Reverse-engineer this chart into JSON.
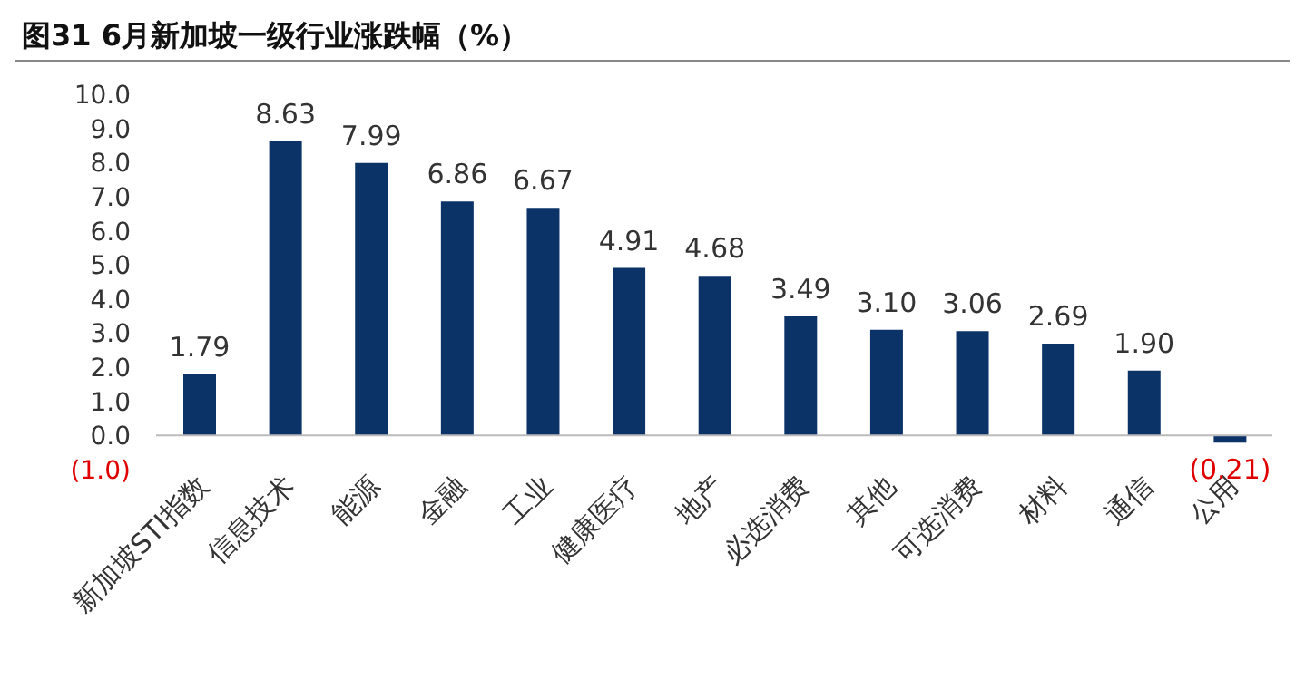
{
  "chart_data": {
    "type": "bar",
    "title": "图31 6月新加坡一级行业涨跌幅（%）",
    "categories": [
      "新加坡STI指数",
      "信息技术",
      "能源",
      "金融",
      "工业",
      "健康医疗",
      "地产",
      "必选消费",
      "其他",
      "可选消费",
      "材料",
      "通信",
      "公用"
    ],
    "values": [
      1.79,
      8.63,
      7.99,
      6.86,
      6.67,
      4.91,
      4.68,
      3.49,
      3.1,
      3.06,
      2.69,
      1.9,
      -0.21
    ],
    "value_labels": [
      "1.79",
      "8.63",
      "7.99",
      "6.86",
      "6.67",
      "4.91",
      "4.68",
      "3.49",
      "3.10",
      "3.06",
      "2.69",
      "1.90",
      "(0.21)"
    ],
    "color": "#0b3368",
    "ylim": [
      -1,
      10
    ],
    "yticks": [
      {
        "value": -1,
        "label": "(1.0)"
      },
      {
        "value": 0,
        "label": "0.0"
      },
      {
        "value": 1,
        "label": "1.0"
      },
      {
        "value": 2,
        "label": "2.0"
      },
      {
        "value": 3,
        "label": "3.0"
      },
      {
        "value": 4,
        "label": "4.0"
      },
      {
        "value": 5,
        "label": "5.0"
      },
      {
        "value": 6,
        "label": "6.0"
      },
      {
        "value": 7,
        "label": "7.0"
      },
      {
        "value": 8,
        "label": "8.0"
      },
      {
        "value": 9,
        "label": "9.0"
      },
      {
        "value": 10,
        "label": "10.0"
      }
    ],
    "grid": false,
    "legend": false
  }
}
